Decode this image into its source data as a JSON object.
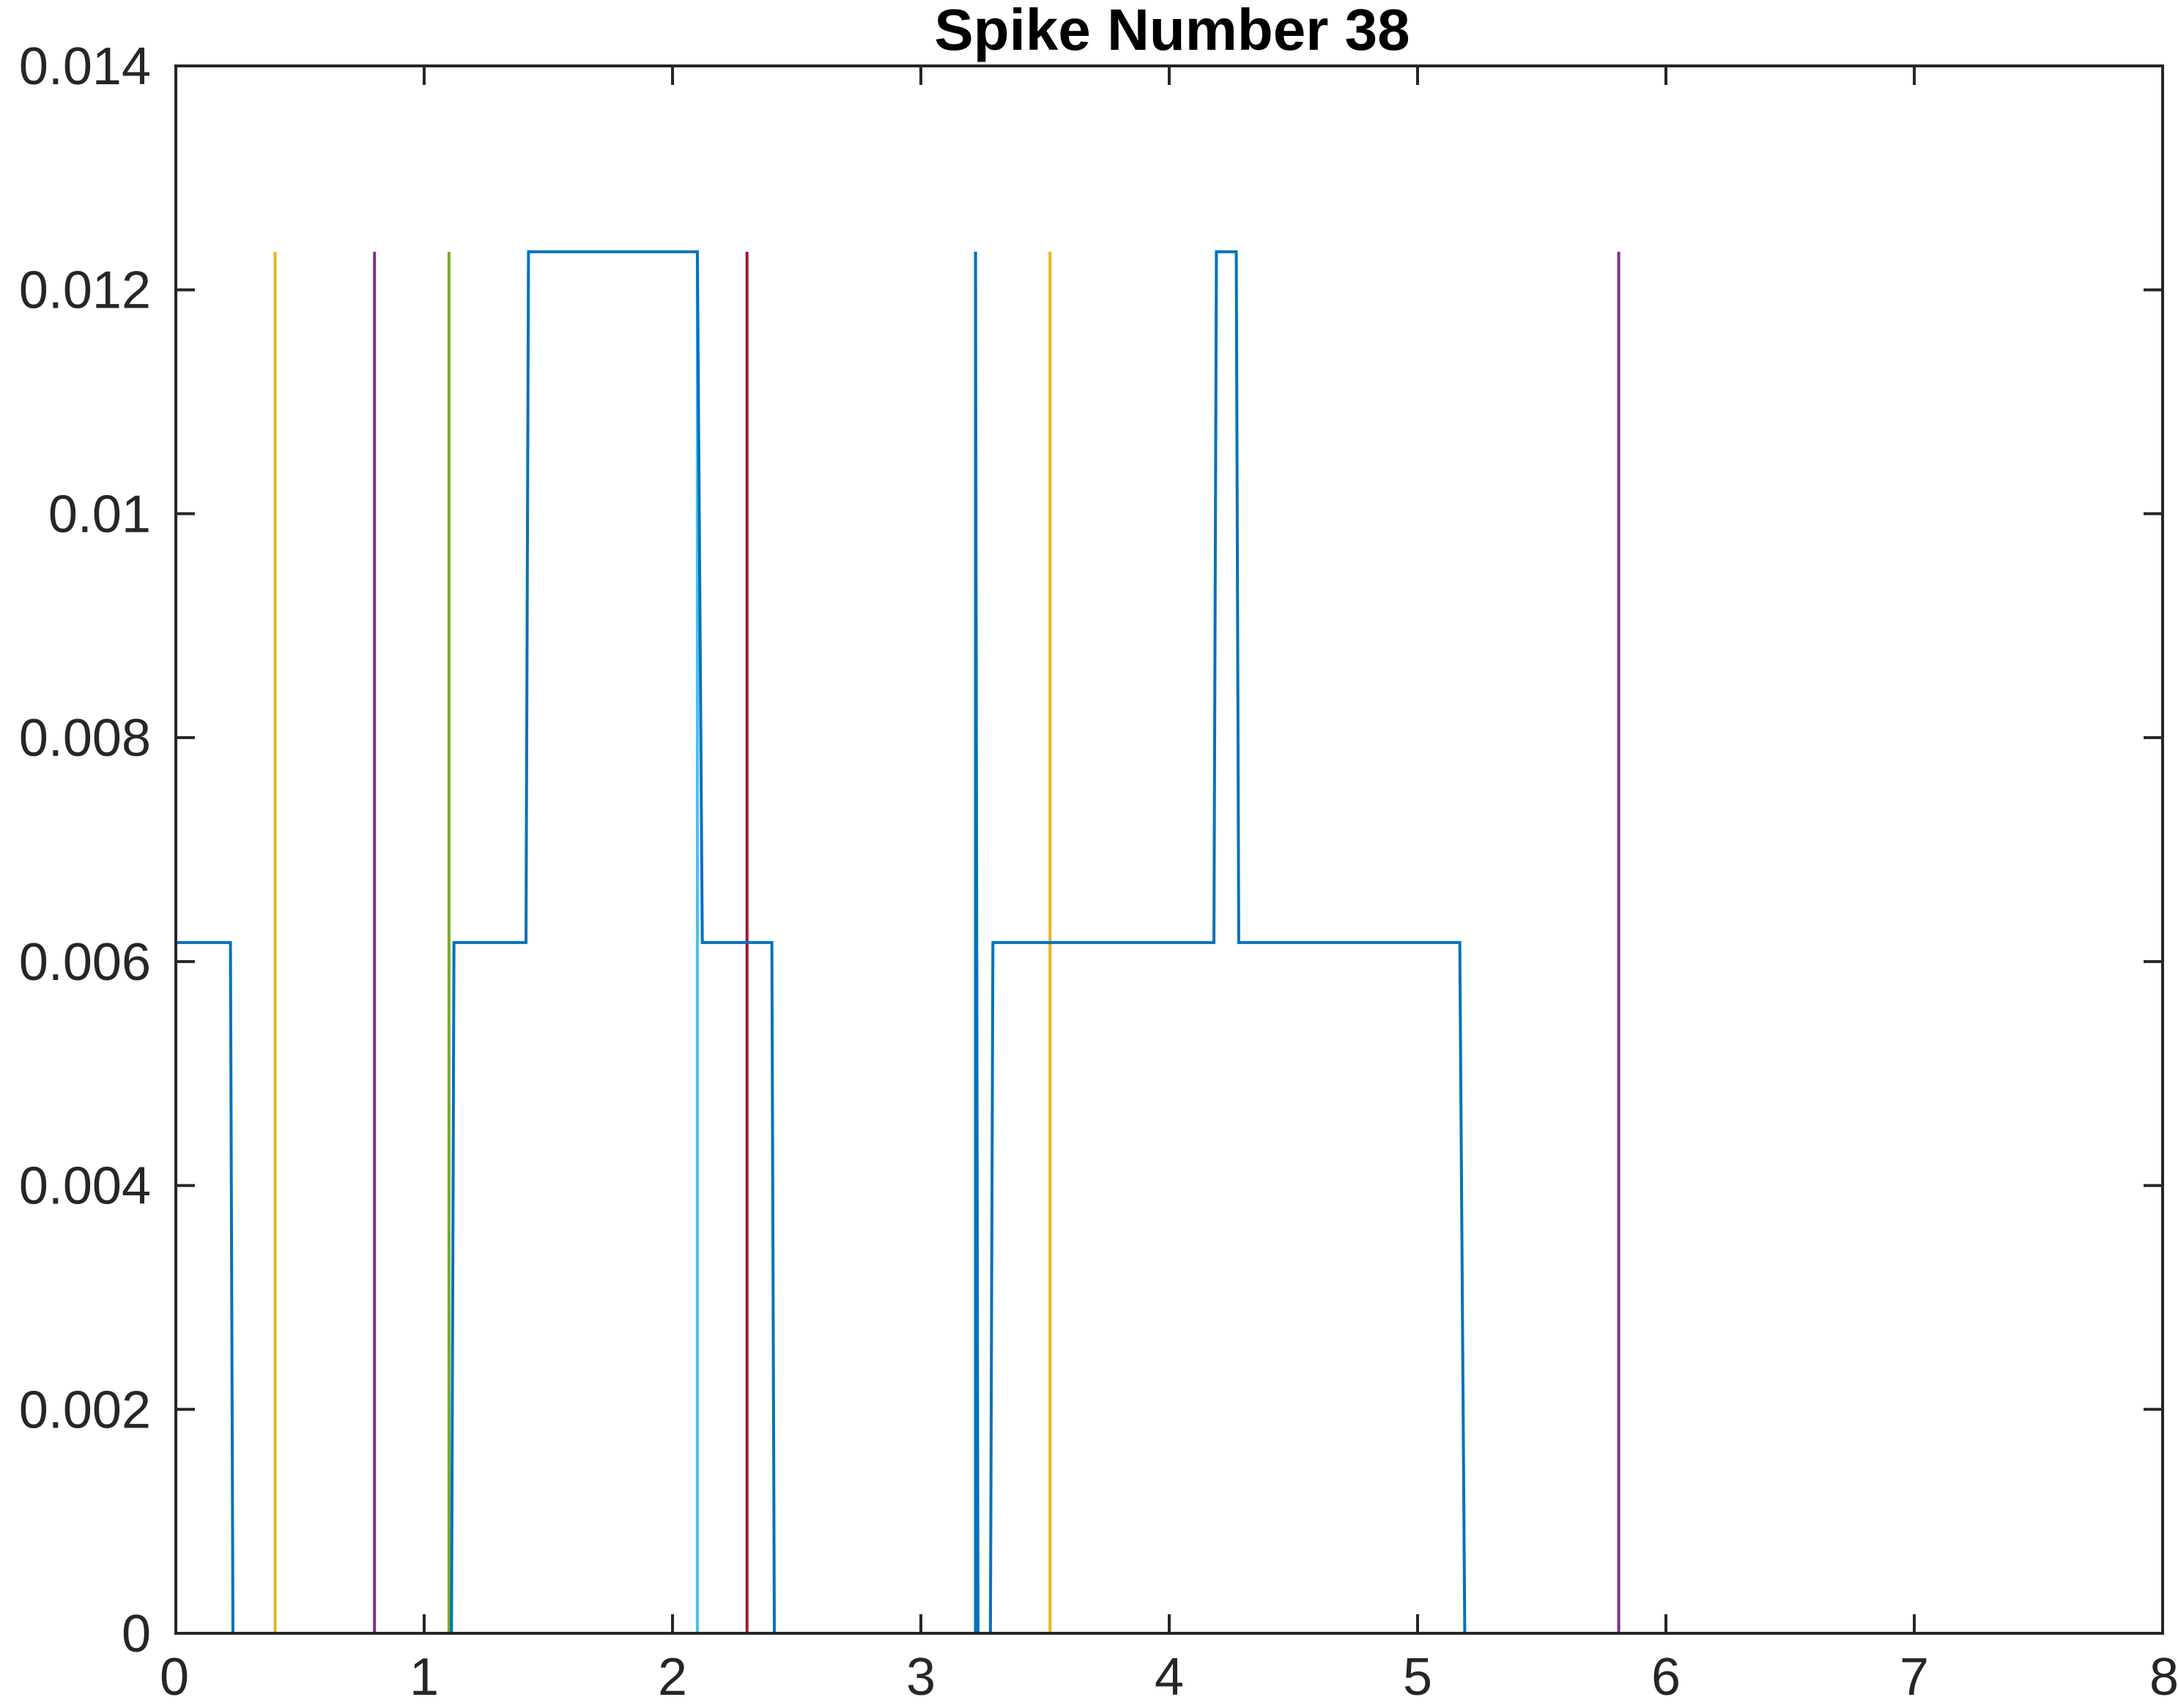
{
  "chart_data": {
    "type": "line",
    "title": "Spike Number 38",
    "xlabel": "",
    "ylabel": "",
    "xlim": [
      0,
      8
    ],
    "ylim": [
      0,
      0.014
    ],
    "grid": false,
    "legend": "none",
    "x_ticks": [
      "0",
      "1",
      "2",
      "3",
      "4",
      "5",
      "6",
      "7",
      "8"
    ],
    "y_ticks": [
      "0",
      "0.002",
      "0.004",
      "0.006",
      "0.008",
      "0.01",
      "0.012",
      "0.014"
    ],
    "x_tick_values": [
      0,
      1,
      2,
      3,
      4,
      5,
      6,
      7,
      8
    ],
    "y_tick_values": [
      0,
      0.002,
      0.004,
      0.006,
      0.008,
      0.01,
      0.012,
      0.014
    ],
    "series": [
      {
        "color": "#0072bd",
        "x": [
          0,
          0.22,
          0.23,
          1.11,
          1.12,
          1.41,
          1.42,
          2.1,
          2.12,
          2.4,
          2.41,
          3.22,
          3.22,
          3.23,
          3.28,
          3.29,
          4.18,
          4.19,
          4.27,
          4.28,
          5.17,
          5.19,
          7.8
        ],
        "y": [
          0.00617,
          0.00617,
          0,
          0,
          0.00617,
          0.00617,
          0.01234,
          0.01234,
          0.00617,
          0.00617,
          0,
          0,
          0.01234,
          0,
          0,
          0.00617,
          0.00617,
          0.01234,
          0.01234,
          0.00617,
          0.00617,
          0,
          0
        ]
      }
    ],
    "markers": [
      {
        "x": 0.0,
        "y0": 0,
        "y1": 0.01234,
        "color": "#d95319"
      },
      {
        "x": 0.4,
        "y0": 0,
        "y1": 0.01234,
        "color": "#edb120"
      },
      {
        "x": 0.8,
        "y0": 0,
        "y1": 0.01234,
        "color": "#7e2f8e"
      },
      {
        "x": 1.1,
        "y0": 0,
        "y1": 0.01234,
        "color": "#77ac30"
      },
      {
        "x": 2.1,
        "y0": 0,
        "y1": 0.01234,
        "color": "#4dbeee"
      },
      {
        "x": 2.3,
        "y0": 0,
        "y1": 0.01234,
        "color": "#a2142f"
      },
      {
        "x": 3.22,
        "y0": 0,
        "y1": 0.01234,
        "color": "#0072bd"
      },
      {
        "x": 3.52,
        "y0": 0,
        "y1": 0.01234,
        "color": "#edb120"
      },
      {
        "x": 5.81,
        "y0": 0,
        "y1": 0.01234,
        "color": "#7e2f8e"
      }
    ]
  }
}
